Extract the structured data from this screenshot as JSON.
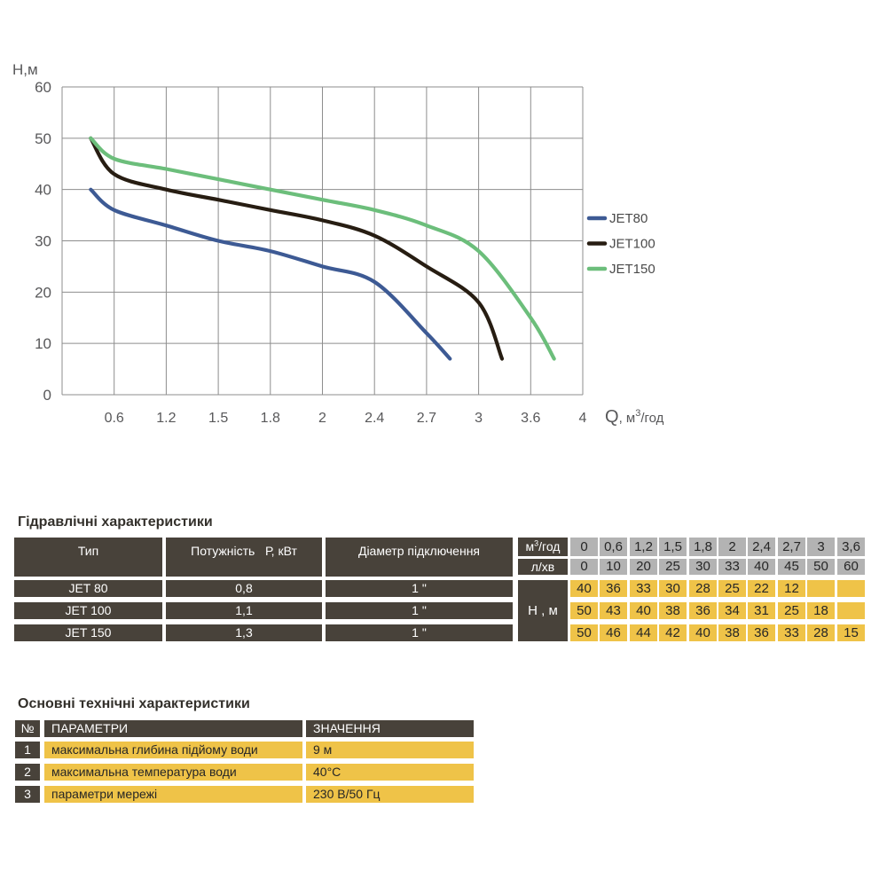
{
  "chart_data": {
    "type": "line",
    "title": "",
    "ylabel": "Н,м",
    "xlabel": "Q, м3/год",
    "axis_labels": {
      "y": "Н,м",
      "x_main": "Q",
      "x_rest": ", м",
      "x_sup": "3",
      "x_post": "/год"
    },
    "y_ticks": [
      0,
      10,
      20,
      30,
      40,
      50,
      60
    ],
    "ylim": [
      0,
      60
    ],
    "x_tick_labels": [
      "0.6",
      "1.2",
      "1.5",
      "1.8",
      "2",
      "2.4",
      "2.7",
      "3",
      "3.6",
      "4"
    ],
    "x_categories_m3h": [
      0,
      0.6,
      1.2,
      1.5,
      1.8,
      2,
      2.4,
      2.7,
      3,
      3.6,
      4
    ],
    "grid": true,
    "legend_position": "right",
    "note": "x gridlines equally spaced although tick values are non-linear; curves start at Q=0 head value slightly inside plot",
    "series": [
      {
        "name": "JET80",
        "color": "#3d5a94",
        "H_at_categories": [
          40,
          36,
          33,
          30,
          28,
          25,
          22,
          12,
          null,
          null,
          null
        ],
        "draw_points_idx_H": [
          [
            0.55,
            40
          ],
          [
            1,
            36
          ],
          [
            2,
            33
          ],
          [
            3,
            30
          ],
          [
            4,
            28
          ],
          [
            5,
            25
          ],
          [
            6,
            22
          ],
          [
            7,
            12
          ],
          [
            7.45,
            7
          ]
        ]
      },
      {
        "name": "JET100",
        "color": "#271d12",
        "H_at_categories": [
          50,
          43,
          40,
          38,
          36,
          34,
          31,
          25,
          18,
          null,
          null
        ],
        "draw_points_idx_H": [
          [
            0.55,
            50
          ],
          [
            1,
            43
          ],
          [
            2,
            40
          ],
          [
            3,
            38
          ],
          [
            4,
            36
          ],
          [
            5,
            34
          ],
          [
            6,
            31
          ],
          [
            7,
            25
          ],
          [
            8,
            18
          ],
          [
            8.45,
            7
          ]
        ]
      },
      {
        "name": "JET150",
        "color": "#6cbe7b",
        "H_at_categories": [
          50,
          46,
          44,
          42,
          40,
          38,
          36,
          33,
          28,
          15,
          null
        ],
        "draw_points_idx_H": [
          [
            0.55,
            50
          ],
          [
            1,
            46
          ],
          [
            2,
            44
          ],
          [
            3,
            42
          ],
          [
            4,
            40
          ],
          [
            5,
            38
          ],
          [
            6,
            36
          ],
          [
            7,
            33
          ],
          [
            8,
            28
          ],
          [
            9,
            15
          ],
          [
            9.45,
            7
          ]
        ]
      }
    ]
  },
  "hydraulics": {
    "title": "Гідравлічні характеристики",
    "columns": [
      "Тип",
      "Потужність   Р, кВт",
      "Діаметр підключення"
    ],
    "flow_unit": {
      "pre": "м",
      "sup": "3",
      "post": "/год"
    },
    "flow_row2_label": "л/хв",
    "flow_m3h": [
      "0",
      "0,6",
      "1,2",
      "1,5",
      "1,8",
      "2",
      "2,4",
      "2,7",
      "3",
      "3,6"
    ],
    "flow_lmin": [
      "0",
      "10",
      "20",
      "25",
      "30",
      "33",
      "40",
      "45",
      "50",
      "60"
    ],
    "head_label": "Н , м",
    "rows": [
      {
        "type": "JET 80",
        "power": "0,8",
        "diameter": "1 \"",
        "heads": [
          "40",
          "36",
          "33",
          "30",
          "28",
          "25",
          "22",
          "12",
          "",
          ""
        ]
      },
      {
        "type": "JET 100",
        "power": "1,1",
        "diameter": "1 \"",
        "heads": [
          "50",
          "43",
          "40",
          "38",
          "36",
          "34",
          "31",
          "25",
          "18",
          ""
        ]
      },
      {
        "type": "JET 150",
        "power": "1,3",
        "diameter": "1 \"",
        "heads": [
          "50",
          "46",
          "44",
          "42",
          "40",
          "38",
          "36",
          "33",
          "28",
          "15"
        ]
      }
    ]
  },
  "tech": {
    "title": "Основні технічні характеристики",
    "header": {
      "num": "№",
      "param": "ПАРАМЕТРИ",
      "value": "ЗНАЧЕННЯ"
    },
    "rows": [
      {
        "num": "1",
        "param": "максимальна глибина підйому води",
        "value": "9 м"
      },
      {
        "num": "2",
        "param": "максимальна температура води",
        "value": "40°С"
      },
      {
        "num": "3",
        "param": "параметри мережі",
        "value": "230 В/50 Гц"
      }
    ]
  },
  "colors": {
    "dark_cell": "#48423a",
    "gray_cell": "#b3b3b3",
    "yellow_cell": "#efc348",
    "grid_line": "#8d8d8d",
    "tick_text": "#58585a",
    "legend_text": "#4a4a4a",
    "title_text": "#33302b",
    "jet80": "#3d5a94",
    "jet100": "#271d12",
    "jet150": "#6cbe7b"
  }
}
